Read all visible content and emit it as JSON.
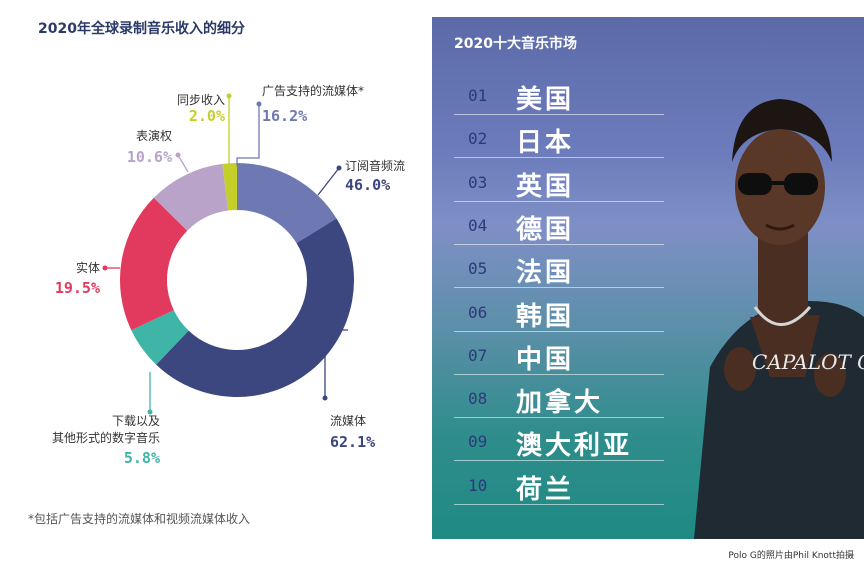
{
  "left_title": "2020年全球录制音乐收入的细分",
  "footnote": "*包括广告支持的流媒体和视频流媒体收入",
  "chart_data": {
    "type": "pie",
    "title": "2020年全球录制音乐收入的细分",
    "inner_total": {
      "label": "流媒体",
      "pct_label": "62.1%",
      "value": 62.1,
      "color": "#3c467f"
    },
    "segments": [
      {
        "label": "广告支持的流媒体*",
        "pct_label": "16.2%",
        "value": 16.2,
        "color": "#6e79b3"
      },
      {
        "label": "订阅音频流",
        "pct_label": "46.0%",
        "value": 46.0,
        "color": "#3c467f"
      },
      {
        "label": "下载以及其他形式的数字音乐",
        "pct_label": "5.8%",
        "value": 5.8,
        "color": "#3eb5a7"
      },
      {
        "label": "实体",
        "pct_label": "19.5%",
        "value": 19.5,
        "color": "#e23a5e"
      },
      {
        "label": "表演权",
        "pct_label": "10.6%",
        "value": 10.6,
        "color": "#b9a3c8"
      },
      {
        "label": "同步收入",
        "pct_label": "2.0%",
        "value": 2.0,
        "color": "#c6cf2a"
      }
    ],
    "label_colors": {
      "广告支持的流媒体*": "#6e79b3",
      "订阅音频流": "#3c467f",
      "流媒体": "#3c467f",
      "下载以及其他形式的数字音乐": "#3eb5a7",
      "实体": "#e23a5e",
      "表演权": "#b9a3c8",
      "同步收入": "#c6cf2a"
    }
  },
  "top_markets": {
    "title": "2020十大音乐市场",
    "items": [
      {
        "rank": "01",
        "country": "美国"
      },
      {
        "rank": "02",
        "country": "日本"
      },
      {
        "rank": "03",
        "country": "英国"
      },
      {
        "rank": "04",
        "country": "德国"
      },
      {
        "rank": "05",
        "country": "法国"
      },
      {
        "rank": "06",
        "country": "韩国"
      },
      {
        "rank": "07",
        "country": "中国"
      },
      {
        "rank": "08",
        "country": "加拿大"
      },
      {
        "rank": "09",
        "country": "澳大利亚"
      },
      {
        "rank": "10",
        "country": "荷兰"
      }
    ]
  },
  "pendant_text": "CAPALOT G",
  "photo_credit": "Polo G的照片由Phil Knott拍摄"
}
